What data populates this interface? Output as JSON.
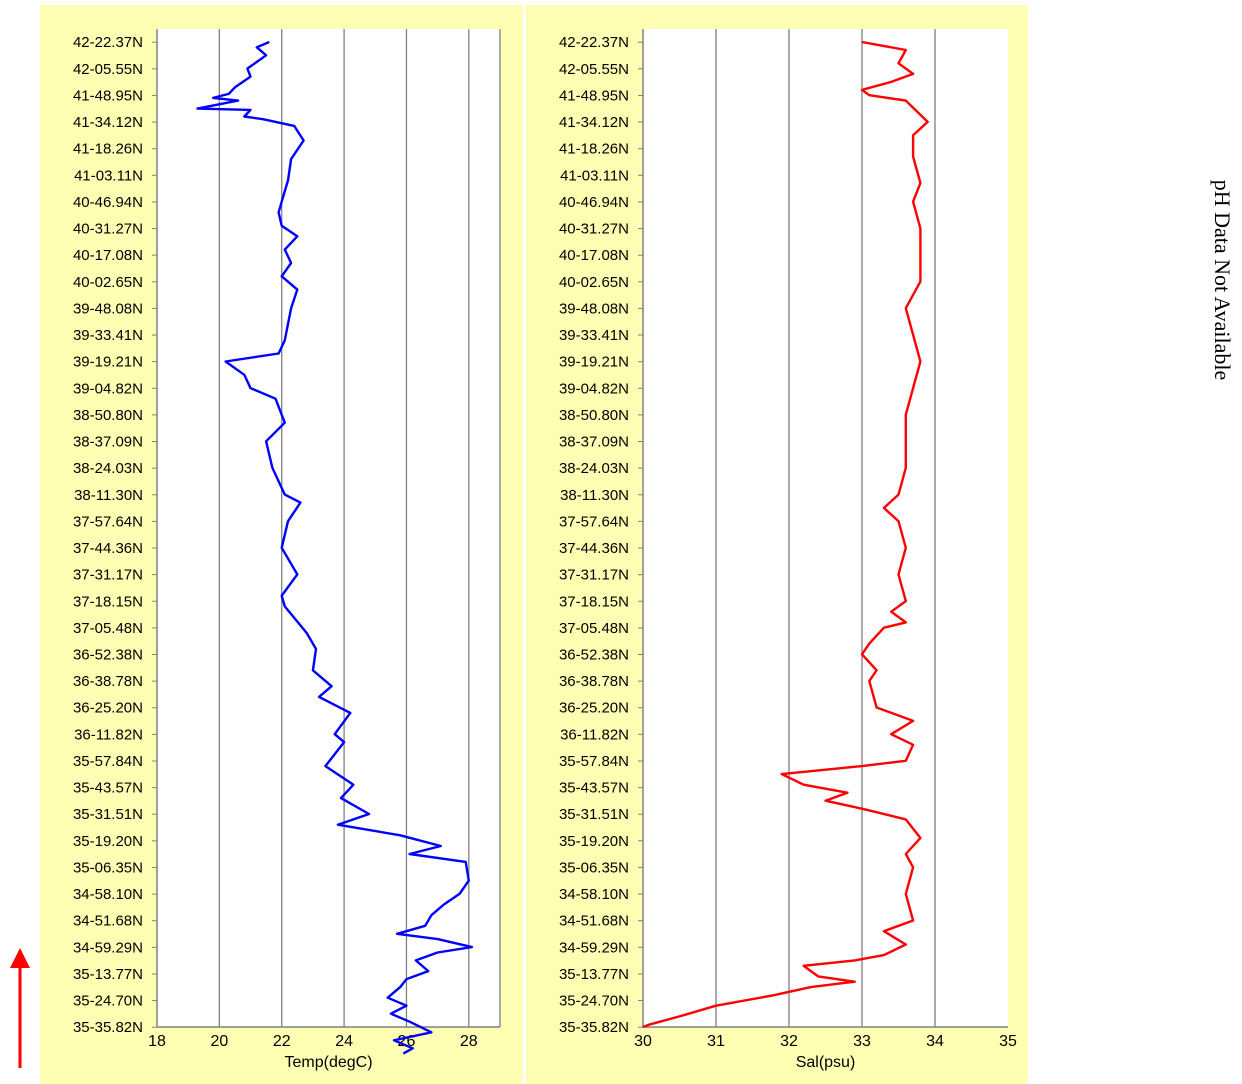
{
  "note": "pH Data Not Available",
  "colors": {
    "panel_bg": "#ffffb3",
    "plot_bg": "#ffffff",
    "grid": "#808080",
    "temp_line": "#0000ff",
    "sal_line": "#ff0000",
    "arrow": "#ff0000"
  },
  "chart_data": [
    {
      "type": "line",
      "xlabel": "Temp(degC)",
      "ylabel": "",
      "xlim": [
        18,
        29
      ],
      "x_ticks": [
        "18",
        "20",
        "22",
        "24",
        "26",
        "28"
      ],
      "y_ticks": [
        "42-22.37N",
        "42-05.55N",
        "41-48.95N",
        "41-34.12N",
        "41-18.26N",
        "41-03.11N",
        "40-46.94N",
        "40-31.27N",
        "40-17.08N",
        "40-02.65N",
        "39-48.08N",
        "39-33.41N",
        "39-19.21N",
        "39-04.82N",
        "38-50.80N",
        "38-37.09N",
        "38-24.03N",
        "38-11.30N",
        "37-57.64N",
        "37-44.36N",
        "37-31.17N",
        "37-18.15N",
        "37-05.48N",
        "36-52.38N",
        "36-38.78N",
        "36-25.20N",
        "36-11.82N",
        "35-57.84N",
        "35-43.57N",
        "35-31.51N",
        "35-19.20N",
        "35-06.35N",
        "34-58.10N",
        "34-51.68N",
        "34-59.29N",
        "35-13.77N",
        "35-24.70N",
        "35-35.82N"
      ],
      "grid": true,
      "series": [
        {
          "color": "#0000ff",
          "points": [
            [
              21.6,
              0
            ],
            [
              21.2,
              0.2
            ],
            [
              21.5,
              0.5
            ],
            [
              20.9,
              1.0
            ],
            [
              21.0,
              1.3
            ],
            [
              20.5,
              1.7
            ],
            [
              20.3,
              1.95
            ],
            [
              19.8,
              2.1
            ],
            [
              20.6,
              2.2
            ],
            [
              19.3,
              2.5
            ],
            [
              21.0,
              2.55
            ],
            [
              20.8,
              2.8
            ],
            [
              21.4,
              2.9
            ],
            [
              22.4,
              3.15
            ],
            [
              22.7,
              3.7
            ],
            [
              22.3,
              4.4
            ],
            [
              22.2,
              5.2
            ],
            [
              22.0,
              6.0
            ],
            [
              21.9,
              6.4
            ],
            [
              22.0,
              6.9
            ],
            [
              22.5,
              7.3
            ],
            [
              22.1,
              7.8
            ],
            [
              22.3,
              8.3
            ],
            [
              22.0,
              8.8
            ],
            [
              22.5,
              9.3
            ],
            [
              22.3,
              10.0
            ],
            [
              22.1,
              11.2
            ],
            [
              21.9,
              11.7
            ],
            [
              20.2,
              12.0
            ],
            [
              20.8,
              12.5
            ],
            [
              21.0,
              13.0
            ],
            [
              21.8,
              13.4
            ],
            [
              22.1,
              14.3
            ],
            [
              21.5,
              15.0
            ],
            [
              21.7,
              16.0
            ],
            [
              22.1,
              17.0
            ],
            [
              22.6,
              17.3
            ],
            [
              22.2,
              18.0
            ],
            [
              22.0,
              19.0
            ],
            [
              22.5,
              20.0
            ],
            [
              22.0,
              20.8
            ],
            [
              22.1,
              21.2
            ],
            [
              22.8,
              22.2
            ],
            [
              23.1,
              22.8
            ],
            [
              23.0,
              23.6
            ],
            [
              23.6,
              24.2
            ],
            [
              23.2,
              24.6
            ],
            [
              24.2,
              25.2
            ],
            [
              23.7,
              26.0
            ],
            [
              24.0,
              26.3
            ],
            [
              23.4,
              27.2
            ],
            [
              24.3,
              27.9
            ],
            [
              23.9,
              28.4
            ],
            [
              24.8,
              29.0
            ],
            [
              23.8,
              29.4
            ],
            [
              25.8,
              29.8
            ],
            [
              27.1,
              30.2
            ],
            [
              26.1,
              30.5
            ],
            [
              27.9,
              30.8
            ],
            [
              28.0,
              31.5
            ],
            [
              27.7,
              32.0
            ],
            [
              27.2,
              32.4
            ],
            [
              26.8,
              32.8
            ],
            [
              26.6,
              33.2
            ],
            [
              25.7,
              33.5
            ],
            [
              27.0,
              33.7
            ],
            [
              28.1,
              34.0
            ],
            [
              27.0,
              34.2
            ],
            [
              26.3,
              34.5
            ],
            [
              26.7,
              34.9
            ],
            [
              26.0,
              35.2
            ],
            [
              25.8,
              35.5
            ],
            [
              25.4,
              35.9
            ],
            [
              26.0,
              36.2
            ],
            [
              25.5,
              36.5
            ],
            [
              26.1,
              36.8
            ],
            [
              26.8,
              37.2
            ],
            [
              25.6,
              37.5
            ],
            [
              26.2,
              37.8
            ],
            [
              25.9,
              38.0
            ]
          ]
        }
      ]
    },
    {
      "type": "line",
      "xlabel": "Sal(psu)",
      "ylabel": "",
      "xlim": [
        30,
        35
      ],
      "x_ticks": [
        "30",
        "31",
        "32",
        "33",
        "34",
        "35"
      ],
      "y_ticks": [
        "42-22.37N",
        "42-05.55N",
        "41-48.95N",
        "41-34.12N",
        "41-18.26N",
        "41-03.11N",
        "40-46.94N",
        "40-31.27N",
        "40-17.08N",
        "40-02.65N",
        "39-48.08N",
        "39-33.41N",
        "39-19.21N",
        "39-04.82N",
        "38-50.80N",
        "38-37.09N",
        "38-24.03N",
        "38-11.30N",
        "37-57.64N",
        "37-44.36N",
        "37-31.17N",
        "37-18.15N",
        "37-05.48N",
        "36-52.38N",
        "36-38.78N",
        "36-25.20N",
        "36-11.82N",
        "35-57.84N",
        "35-43.57N",
        "35-31.51N",
        "35-19.20N",
        "35-06.35N",
        "34-58.10N",
        "34-51.68N",
        "34-59.29N",
        "35-13.77N",
        "35-24.70N",
        "35-35.82N"
      ],
      "grid": true,
      "series": [
        {
          "color": "#ff0000",
          "points": [
            [
              33.0,
              0
            ],
            [
              33.6,
              0.3
            ],
            [
              33.5,
              0.8
            ],
            [
              33.7,
              1.2
            ],
            [
              33.4,
              1.5
            ],
            [
              33.0,
              1.8
            ],
            [
              33.1,
              2.0
            ],
            [
              33.6,
              2.2
            ],
            [
              33.9,
              3.0
            ],
            [
              33.7,
              3.5
            ],
            [
              33.7,
              4.3
            ],
            [
              33.8,
              5.3
            ],
            [
              33.7,
              6.0
            ],
            [
              33.8,
              7.0
            ],
            [
              33.8,
              8.0
            ],
            [
              33.8,
              9.0
            ],
            [
              33.6,
              10.0
            ],
            [
              33.7,
              11.0
            ],
            [
              33.8,
              12.0
            ],
            [
              33.7,
              13.0
            ],
            [
              33.6,
              14.0
            ],
            [
              33.6,
              16.0
            ],
            [
              33.5,
              17.0
            ],
            [
              33.3,
              17.5
            ],
            [
              33.5,
              18.0
            ],
            [
              33.6,
              19.0
            ],
            [
              33.5,
              20.0
            ],
            [
              33.6,
              21.0
            ],
            [
              33.4,
              21.4
            ],
            [
              33.6,
              21.8
            ],
            [
              33.3,
              22.0
            ],
            [
              33.1,
              22.6
            ],
            [
              33.0,
              23.0
            ],
            [
              33.2,
              23.6
            ],
            [
              33.1,
              24.0
            ],
            [
              33.2,
              25.0
            ],
            [
              33.5,
              25.3
            ],
            [
              33.7,
              25.5
            ],
            [
              33.4,
              26.0
            ],
            [
              33.7,
              26.4
            ],
            [
              33.6,
              27.0
            ],
            [
              33.0,
              27.2
            ],
            [
              31.9,
              27.5
            ],
            [
              32.2,
              27.9
            ],
            [
              32.8,
              28.2
            ],
            [
              32.5,
              28.5
            ],
            [
              33.0,
              28.8
            ],
            [
              33.6,
              29.2
            ],
            [
              33.8,
              29.9
            ],
            [
              33.6,
              30.5
            ],
            [
              33.7,
              31.0
            ],
            [
              33.6,
              32.0
            ],
            [
              33.7,
              33.0
            ],
            [
              33.3,
              33.4
            ],
            [
              33.6,
              33.9
            ],
            [
              33.3,
              34.3
            ],
            [
              32.9,
              34.5
            ],
            [
              32.2,
              34.7
            ],
            [
              32.4,
              35.1
            ],
            [
              32.9,
              35.3
            ],
            [
              32.3,
              35.5
            ],
            [
              31.8,
              35.8
            ],
            [
              31.0,
              36.2
            ],
            [
              30.5,
              36.6
            ],
            [
              30.1,
              36.9
            ],
            [
              30.0,
              37.0
            ]
          ]
        }
      ]
    }
  ]
}
